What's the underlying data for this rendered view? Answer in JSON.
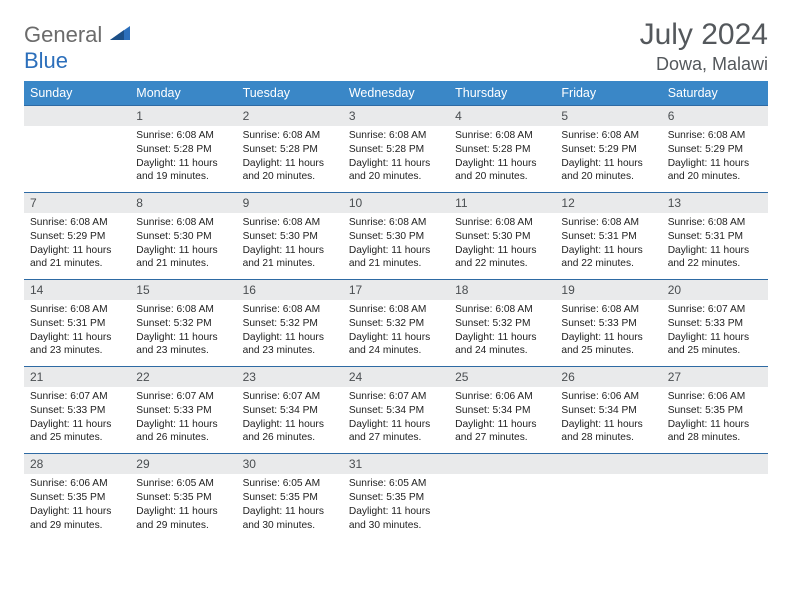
{
  "logo": {
    "text_left": "General",
    "text_right": "Blue"
  },
  "title": "July 2024",
  "location": "Dowa, Malawi",
  "colors": {
    "header_bg": "#3a87c7",
    "header_text": "#ffffff",
    "daynum_bg": "#e9eaeb",
    "row_border": "#2e6aa3",
    "title_color": "#54585c",
    "logo_gray": "#6b6b6b",
    "logo_blue": "#2c6fbb"
  },
  "days_of_week": [
    "Sunday",
    "Monday",
    "Tuesday",
    "Wednesday",
    "Thursday",
    "Friday",
    "Saturday"
  ],
  "weeks": [
    [
      null,
      {
        "n": "1",
        "sr": "Sunrise: 6:08 AM",
        "ss": "Sunset: 5:28 PM",
        "dl1": "Daylight: 11 hours",
        "dl2": "and 19 minutes."
      },
      {
        "n": "2",
        "sr": "Sunrise: 6:08 AM",
        "ss": "Sunset: 5:28 PM",
        "dl1": "Daylight: 11 hours",
        "dl2": "and 20 minutes."
      },
      {
        "n": "3",
        "sr": "Sunrise: 6:08 AM",
        "ss": "Sunset: 5:28 PM",
        "dl1": "Daylight: 11 hours",
        "dl2": "and 20 minutes."
      },
      {
        "n": "4",
        "sr": "Sunrise: 6:08 AM",
        "ss": "Sunset: 5:28 PM",
        "dl1": "Daylight: 11 hours",
        "dl2": "and 20 minutes."
      },
      {
        "n": "5",
        "sr": "Sunrise: 6:08 AM",
        "ss": "Sunset: 5:29 PM",
        "dl1": "Daylight: 11 hours",
        "dl2": "and 20 minutes."
      },
      {
        "n": "6",
        "sr": "Sunrise: 6:08 AM",
        "ss": "Sunset: 5:29 PM",
        "dl1": "Daylight: 11 hours",
        "dl2": "and 20 minutes."
      }
    ],
    [
      {
        "n": "7",
        "sr": "Sunrise: 6:08 AM",
        "ss": "Sunset: 5:29 PM",
        "dl1": "Daylight: 11 hours",
        "dl2": "and 21 minutes."
      },
      {
        "n": "8",
        "sr": "Sunrise: 6:08 AM",
        "ss": "Sunset: 5:30 PM",
        "dl1": "Daylight: 11 hours",
        "dl2": "and 21 minutes."
      },
      {
        "n": "9",
        "sr": "Sunrise: 6:08 AM",
        "ss": "Sunset: 5:30 PM",
        "dl1": "Daylight: 11 hours",
        "dl2": "and 21 minutes."
      },
      {
        "n": "10",
        "sr": "Sunrise: 6:08 AM",
        "ss": "Sunset: 5:30 PM",
        "dl1": "Daylight: 11 hours",
        "dl2": "and 21 minutes."
      },
      {
        "n": "11",
        "sr": "Sunrise: 6:08 AM",
        "ss": "Sunset: 5:30 PM",
        "dl1": "Daylight: 11 hours",
        "dl2": "and 22 minutes."
      },
      {
        "n": "12",
        "sr": "Sunrise: 6:08 AM",
        "ss": "Sunset: 5:31 PM",
        "dl1": "Daylight: 11 hours",
        "dl2": "and 22 minutes."
      },
      {
        "n": "13",
        "sr": "Sunrise: 6:08 AM",
        "ss": "Sunset: 5:31 PM",
        "dl1": "Daylight: 11 hours",
        "dl2": "and 22 minutes."
      }
    ],
    [
      {
        "n": "14",
        "sr": "Sunrise: 6:08 AM",
        "ss": "Sunset: 5:31 PM",
        "dl1": "Daylight: 11 hours",
        "dl2": "and 23 minutes."
      },
      {
        "n": "15",
        "sr": "Sunrise: 6:08 AM",
        "ss": "Sunset: 5:32 PM",
        "dl1": "Daylight: 11 hours",
        "dl2": "and 23 minutes."
      },
      {
        "n": "16",
        "sr": "Sunrise: 6:08 AM",
        "ss": "Sunset: 5:32 PM",
        "dl1": "Daylight: 11 hours",
        "dl2": "and 23 minutes."
      },
      {
        "n": "17",
        "sr": "Sunrise: 6:08 AM",
        "ss": "Sunset: 5:32 PM",
        "dl1": "Daylight: 11 hours",
        "dl2": "and 24 minutes."
      },
      {
        "n": "18",
        "sr": "Sunrise: 6:08 AM",
        "ss": "Sunset: 5:32 PM",
        "dl1": "Daylight: 11 hours",
        "dl2": "and 24 minutes."
      },
      {
        "n": "19",
        "sr": "Sunrise: 6:08 AM",
        "ss": "Sunset: 5:33 PM",
        "dl1": "Daylight: 11 hours",
        "dl2": "and 25 minutes."
      },
      {
        "n": "20",
        "sr": "Sunrise: 6:07 AM",
        "ss": "Sunset: 5:33 PM",
        "dl1": "Daylight: 11 hours",
        "dl2": "and 25 minutes."
      }
    ],
    [
      {
        "n": "21",
        "sr": "Sunrise: 6:07 AM",
        "ss": "Sunset: 5:33 PM",
        "dl1": "Daylight: 11 hours",
        "dl2": "and 25 minutes."
      },
      {
        "n": "22",
        "sr": "Sunrise: 6:07 AM",
        "ss": "Sunset: 5:33 PM",
        "dl1": "Daylight: 11 hours",
        "dl2": "and 26 minutes."
      },
      {
        "n": "23",
        "sr": "Sunrise: 6:07 AM",
        "ss": "Sunset: 5:34 PM",
        "dl1": "Daylight: 11 hours",
        "dl2": "and 26 minutes."
      },
      {
        "n": "24",
        "sr": "Sunrise: 6:07 AM",
        "ss": "Sunset: 5:34 PM",
        "dl1": "Daylight: 11 hours",
        "dl2": "and 27 minutes."
      },
      {
        "n": "25",
        "sr": "Sunrise: 6:06 AM",
        "ss": "Sunset: 5:34 PM",
        "dl1": "Daylight: 11 hours",
        "dl2": "and 27 minutes."
      },
      {
        "n": "26",
        "sr": "Sunrise: 6:06 AM",
        "ss": "Sunset: 5:34 PM",
        "dl1": "Daylight: 11 hours",
        "dl2": "and 28 minutes."
      },
      {
        "n": "27",
        "sr": "Sunrise: 6:06 AM",
        "ss": "Sunset: 5:35 PM",
        "dl1": "Daylight: 11 hours",
        "dl2": "and 28 minutes."
      }
    ],
    [
      {
        "n": "28",
        "sr": "Sunrise: 6:06 AM",
        "ss": "Sunset: 5:35 PM",
        "dl1": "Daylight: 11 hours",
        "dl2": "and 29 minutes."
      },
      {
        "n": "29",
        "sr": "Sunrise: 6:05 AM",
        "ss": "Sunset: 5:35 PM",
        "dl1": "Daylight: 11 hours",
        "dl2": "and 29 minutes."
      },
      {
        "n": "30",
        "sr": "Sunrise: 6:05 AM",
        "ss": "Sunset: 5:35 PM",
        "dl1": "Daylight: 11 hours",
        "dl2": "and 30 minutes."
      },
      {
        "n": "31",
        "sr": "Sunrise: 6:05 AM",
        "ss": "Sunset: 5:35 PM",
        "dl1": "Daylight: 11 hours",
        "dl2": "and 30 minutes."
      },
      null,
      null,
      null
    ]
  ]
}
